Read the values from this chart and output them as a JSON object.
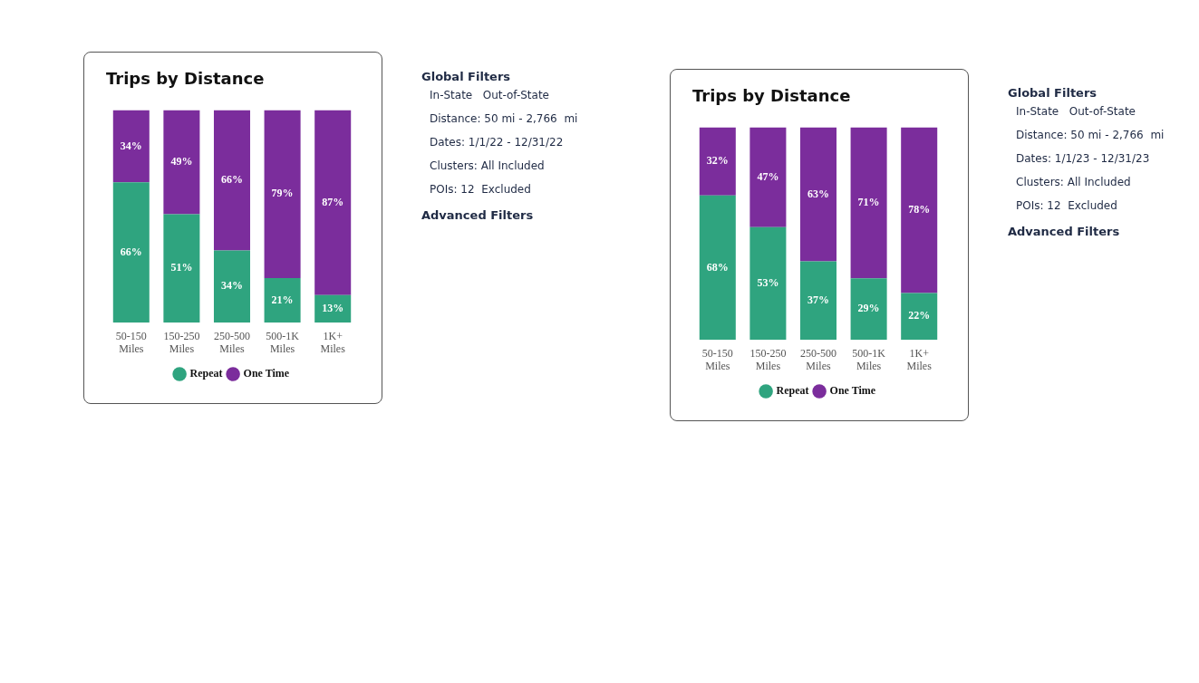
{
  "chart_data": [
    {
      "type": "bar",
      "title": "Trips by Distance",
      "categories": [
        "50-150 Miles",
        "150-250 Miles",
        "250-500 Miles",
        "500-1K Miles",
        "1K+ Miles"
      ],
      "stacked": true,
      "ylim": [
        0,
        100
      ],
      "tick_labels": "x",
      "grid": false,
      "legend": "bottom",
      "series": [
        {
          "name": "Repeat",
          "color": "#2fa47f",
          "values": [
            66,
            51,
            34,
            21,
            13
          ],
          "value_labels": [
            "66%",
            "51%",
            "34%",
            "21%",
            "13%"
          ]
        },
        {
          "name": "One Time",
          "color": "#7b2d9c",
          "values": [
            34,
            49,
            66,
            79,
            87
          ],
          "value_labels": [
            "34%",
            "49%",
            "66%",
            "79%",
            "87%"
          ]
        }
      ]
    },
    {
      "type": "other",
      "title": "Global Filters",
      "annotations": [
        "In-State   Out-of-State",
        "Distance: 50 mi - 2,766  mi",
        "Dates: 1/1/22 - 12/31/22",
        "Clusters: All Included",
        "POIs: 12  Excluded"
      ],
      "subtitle": "Advanced Filters"
    },
    {
      "type": "bar",
      "title": "Trips by Distance",
      "categories": [
        "50-150 Miles",
        "150-250 Miles",
        "250-500 Miles",
        "500-1K Miles",
        "1K+ Miles"
      ],
      "stacked": true,
      "ylim": [
        0,
        100
      ],
      "tick_labels": "x",
      "grid": false,
      "legend": "bottom",
      "series": [
        {
          "name": "Repeat",
          "color": "#2fa47f",
          "values": [
            68,
            53,
            37,
            29,
            22
          ],
          "value_labels": [
            "68%",
            "53%",
            "37%",
            "29%",
            "22%"
          ]
        },
        {
          "name": "One Time",
          "color": "#7b2d9c",
          "values": [
            32,
            47,
            63,
            71,
            78
          ],
          "value_labels": [
            "32%",
            "47%",
            "63%",
            "71%",
            "78%"
          ]
        }
      ]
    },
    {
      "type": "other",
      "title": "Global Filters",
      "annotations": [
        "In-State   Out-of-State",
        "Distance: 50 mi - 2,766  mi",
        "Dates: 1/1/23 - 12/31/23",
        "Clusters: All Included",
        "POIs: 12  Excluded"
      ],
      "subtitle": "Advanced Filters"
    }
  ]
}
